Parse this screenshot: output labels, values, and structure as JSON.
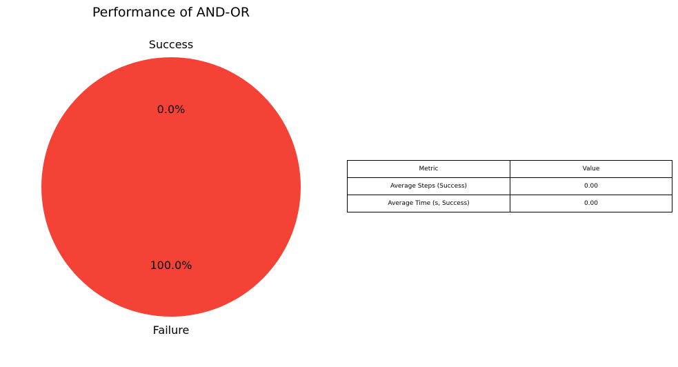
{
  "chart_data": [
    {
      "type": "pie",
      "title": "Performance of AND-OR",
      "labels": [
        "Success",
        "Failure"
      ],
      "values": [
        0.0,
        100.0
      ],
      "pct_labels": [
        "0.0%",
        "100.0%"
      ],
      "colors": [
        "#4caf50",
        "#f44336"
      ]
    },
    {
      "type": "table",
      "columns": [
        "Metric",
        "Value"
      ],
      "rows": [
        [
          "Average Steps (Success)",
          "0.00"
        ],
        [
          "Average Time (s, Success)",
          "0.00"
        ]
      ]
    }
  ]
}
